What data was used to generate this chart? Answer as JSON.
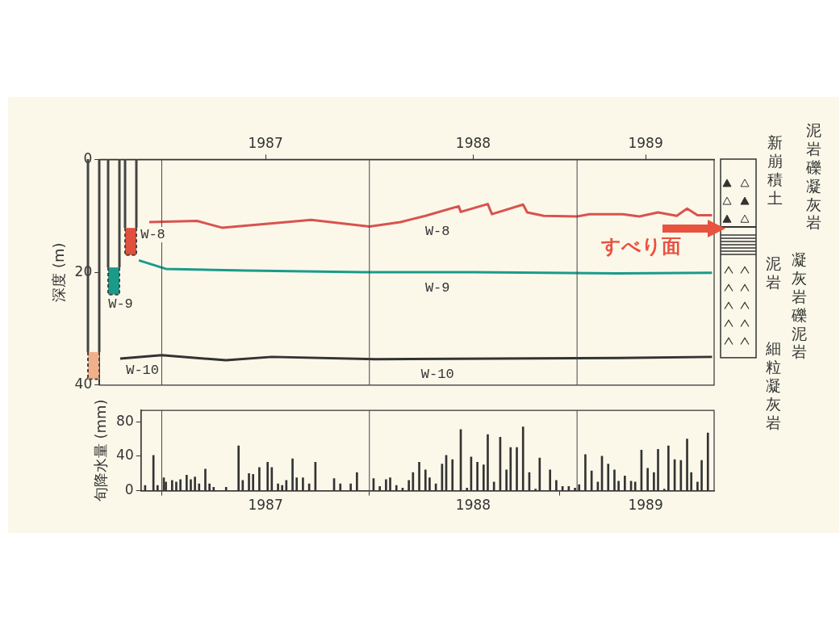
{
  "chart_data": [
    {
      "type": "line",
      "ylabel": "深度 (m)",
      "xlim": [
        1986.7,
        1989.66
      ],
      "xticks": [
        {
          "value": 1987.5,
          "label": "1987"
        },
        {
          "value": 1988.5,
          "label": "1988"
        },
        {
          "value": 1989.33,
          "label": "1989"
        }
      ],
      "ylim": [
        40,
        0
      ],
      "yticks": [
        0,
        20,
        40
      ],
      "marker": "none",
      "ref_lines": [
        {
          "axis": "x",
          "value": 1987
        },
        {
          "axis": "x",
          "value": 1988
        },
        {
          "axis": "x",
          "value": 1989
        }
      ],
      "series": [
        {
          "name": "W-8",
          "color": "#d9534f",
          "x": [
            1986.94,
            1987.17,
            1987.29,
            1987.6,
            1987.72,
            1988.0,
            1988.15,
            1988.27,
            1988.43,
            1988.44,
            1988.57,
            1988.59,
            1988.74,
            1988.76,
            1988.84,
            1989.0,
            1989.06,
            1989.22,
            1989.3,
            1989.39,
            1989.48,
            1989.53,
            1989.58,
            1989.65
          ],
          "values": [
            11.1,
            10.9,
            12.1,
            11.1,
            10.7,
            11.9,
            11.1,
            10.0,
            8.3,
            9.3,
            7.9,
            9.7,
            8.0,
            9.4,
            10.0,
            10.1,
            9.7,
            9.7,
            10.1,
            9.4,
            10.0,
            8.7,
            9.9,
            9.9
          ]
        },
        {
          "name": "W-9",
          "color": "#1a9b8a",
          "x": [
            1986.89,
            1987.02,
            1987.41,
            1987.97,
            1988.5,
            1989.2,
            1989.65
          ],
          "values": [
            17.9,
            19.4,
            19.7,
            20.0,
            20.0,
            20.2,
            20.1
          ]
        },
        {
          "name": "W-10",
          "color": "#333333",
          "x": [
            1986.8,
            1987.0,
            1987.31,
            1987.53,
            1988.03,
            1988.6,
            1989.2,
            1989.65
          ],
          "values": [
            35.3,
            34.7,
            35.6,
            35.0,
            35.4,
            35.3,
            35.2,
            35.0
          ]
        }
      ],
      "annotations": [
        "W-8",
        "W-9",
        "W-10",
        "すべり面",
        "新崩積土",
        "泥岩礫凝灰岩",
        "凝灰岩礫泥岩",
        "泥岩",
        "細粒凝灰岩"
      ]
    },
    {
      "type": "bar",
      "ylabel": "旬降水量 (mm)",
      "xlim": [
        1986.9,
        1989.66
      ],
      "xticks": [
        {
          "value": 1987.5,
          "label": "1987"
        },
        {
          "value": 1988.5,
          "label": "1988"
        },
        {
          "value": 1989.33,
          "label": "1989"
        }
      ],
      "ylim": [
        0,
        93
      ],
      "yticks": [
        0,
        40,
        80
      ],
      "color": "#333333",
      "ref_lines": [
        {
          "axis": "x",
          "value": 1987
        },
        {
          "axis": "x",
          "value": 1988
        },
        {
          "axis": "x",
          "value": 1989
        }
      ],
      "x": [
        1986.92,
        1986.96,
        1986.98,
        1987.01,
        1987.02,
        1987.05,
        1987.07,
        1987.09,
        1987.12,
        1987.14,
        1987.16,
        1987.18,
        1987.21,
        1987.23,
        1987.25,
        1987.31,
        1987.37,
        1987.39,
        1987.42,
        1987.44,
        1987.47,
        1987.51,
        1987.53,
        1987.56,
        1987.58,
        1987.6,
        1987.63,
        1987.65,
        1987.68,
        1987.71,
        1987.74,
        1987.83,
        1987.86,
        1987.91,
        1987.94,
        1988.02,
        1988.05,
        1988.08,
        1988.1,
        1988.13,
        1988.16,
        1988.19,
        1988.21,
        1988.24,
        1988.27,
        1988.29,
        1988.32,
        1988.35,
        1988.37,
        1988.4,
        1988.44,
        1988.47,
        1988.49,
        1988.52,
        1988.55,
        1988.57,
        1988.6,
        1988.63,
        1988.66,
        1988.68,
        1988.71,
        1988.74,
        1988.77,
        1988.8,
        1988.82,
        1988.87,
        1988.9,
        1988.93,
        1988.96,
        1988.99,
        1989.01,
        1989.04,
        1989.07,
        1989.1,
        1989.12,
        1989.15,
        1989.18,
        1989.2,
        1989.23,
        1989.26,
        1989.28,
        1989.31,
        1989.34,
        1989.37,
        1989.39,
        1989.42,
        1989.44,
        1989.47,
        1989.5,
        1989.53,
        1989.55,
        1989.58,
        1989.6,
        1989.63
      ],
      "values": [
        6,
        41,
        6,
        15,
        10,
        12,
        10,
        13,
        18,
        13,
        16,
        8,
        25,
        8,
        4,
        4,
        52,
        12,
        20,
        19,
        27,
        33,
        27,
        8,
        6,
        12,
        37,
        15,
        15,
        8,
        33,
        14,
        8,
        8,
        21,
        14,
        5,
        13,
        15,
        6,
        3,
        12,
        21,
        33,
        24,
        15,
        8,
        31,
        41,
        36,
        71,
        3,
        39,
        33,
        30,
        65,
        10,
        62,
        24,
        50,
        50,
        74,
        21,
        2,
        38,
        24,
        12,
        5,
        5,
        3,
        7,
        42,
        23,
        10,
        40,
        31,
        24,
        11,
        17,
        11,
        10,
        47,
        26,
        21,
        48,
        2,
        52,
        36,
        35,
        60,
        21,
        10,
        35,
        67
      ]
    }
  ]
}
